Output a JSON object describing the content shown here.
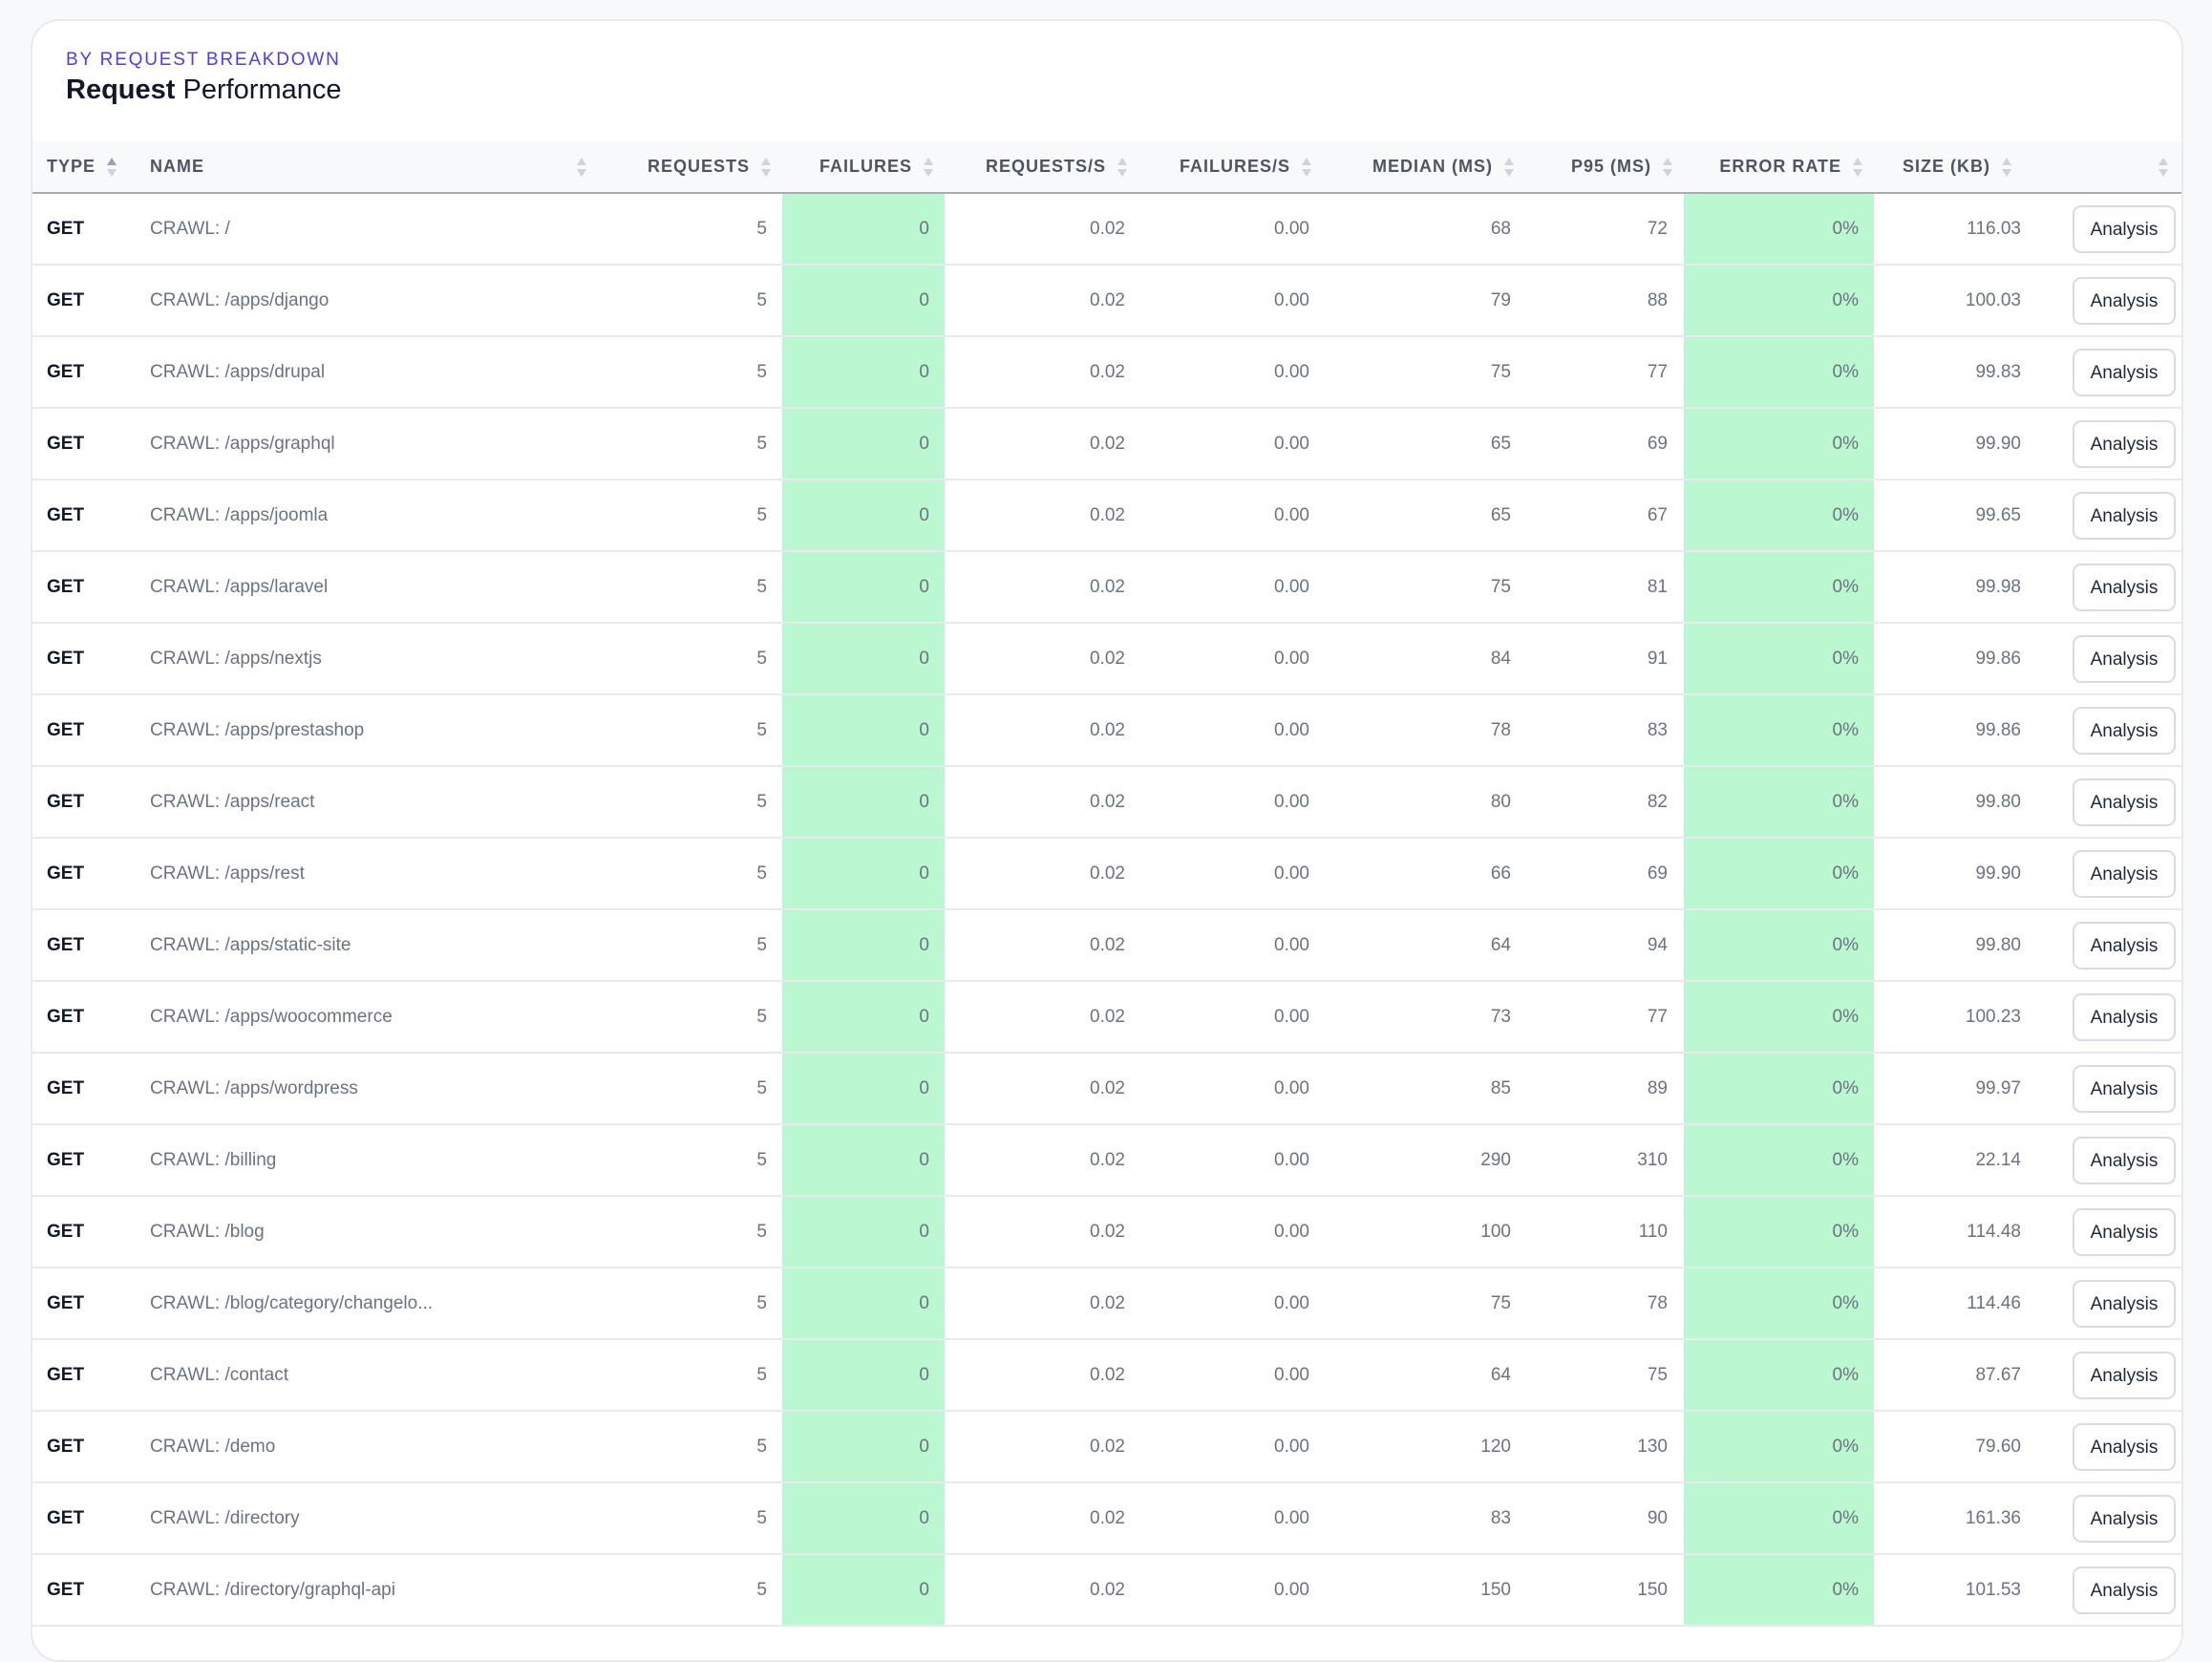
{
  "header": {
    "eyebrow": "BY REQUEST BREAKDOWN",
    "title_bold": "Request",
    "title_rest": " Performance"
  },
  "colors": {
    "accent": "#4f3cf0",
    "success_cell": "#bbf7d0"
  },
  "columns": [
    "TYPE",
    "NAME",
    "REQUESTS",
    "FAILURES",
    "REQUESTS/S",
    "FAILURES/S",
    "MEDIAN (MS)",
    "P95 (MS)",
    "ERROR RATE",
    "SIZE (KB)"
  ],
  "action_label": "Analysis",
  "rows": [
    {
      "type": "GET",
      "name": "CRAWL: /",
      "requests": "5",
      "failures": "0",
      "rps": "0.02",
      "fps": "0.00",
      "median": "68",
      "p95": "72",
      "error_rate": "0%",
      "size": "116.03"
    },
    {
      "type": "GET",
      "name": "CRAWL: /apps/django",
      "requests": "5",
      "failures": "0",
      "rps": "0.02",
      "fps": "0.00",
      "median": "79",
      "p95": "88",
      "error_rate": "0%",
      "size": "100.03"
    },
    {
      "type": "GET",
      "name": "CRAWL: /apps/drupal",
      "requests": "5",
      "failures": "0",
      "rps": "0.02",
      "fps": "0.00",
      "median": "75",
      "p95": "77",
      "error_rate": "0%",
      "size": "99.83"
    },
    {
      "type": "GET",
      "name": "CRAWL: /apps/graphql",
      "requests": "5",
      "failures": "0",
      "rps": "0.02",
      "fps": "0.00",
      "median": "65",
      "p95": "69",
      "error_rate": "0%",
      "size": "99.90"
    },
    {
      "type": "GET",
      "name": "CRAWL: /apps/joomla",
      "requests": "5",
      "failures": "0",
      "rps": "0.02",
      "fps": "0.00",
      "median": "65",
      "p95": "67",
      "error_rate": "0%",
      "size": "99.65"
    },
    {
      "type": "GET",
      "name": "CRAWL: /apps/laravel",
      "requests": "5",
      "failures": "0",
      "rps": "0.02",
      "fps": "0.00",
      "median": "75",
      "p95": "81",
      "error_rate": "0%",
      "size": "99.98"
    },
    {
      "type": "GET",
      "name": "CRAWL: /apps/nextjs",
      "requests": "5",
      "failures": "0",
      "rps": "0.02",
      "fps": "0.00",
      "median": "84",
      "p95": "91",
      "error_rate": "0%",
      "size": "99.86"
    },
    {
      "type": "GET",
      "name": "CRAWL: /apps/prestashop",
      "requests": "5",
      "failures": "0",
      "rps": "0.02",
      "fps": "0.00",
      "median": "78",
      "p95": "83",
      "error_rate": "0%",
      "size": "99.86"
    },
    {
      "type": "GET",
      "name": "CRAWL: /apps/react",
      "requests": "5",
      "failures": "0",
      "rps": "0.02",
      "fps": "0.00",
      "median": "80",
      "p95": "82",
      "error_rate": "0%",
      "size": "99.80"
    },
    {
      "type": "GET",
      "name": "CRAWL: /apps/rest",
      "requests": "5",
      "failures": "0",
      "rps": "0.02",
      "fps": "0.00",
      "median": "66",
      "p95": "69",
      "error_rate": "0%",
      "size": "99.90"
    },
    {
      "type": "GET",
      "name": "CRAWL: /apps/static-site",
      "requests": "5",
      "failures": "0",
      "rps": "0.02",
      "fps": "0.00",
      "median": "64",
      "p95": "94",
      "error_rate": "0%",
      "size": "99.80"
    },
    {
      "type": "GET",
      "name": "CRAWL: /apps/woocommerce",
      "requests": "5",
      "failures": "0",
      "rps": "0.02",
      "fps": "0.00",
      "median": "73",
      "p95": "77",
      "error_rate": "0%",
      "size": "100.23"
    },
    {
      "type": "GET",
      "name": "CRAWL: /apps/wordpress",
      "requests": "5",
      "failures": "0",
      "rps": "0.02",
      "fps": "0.00",
      "median": "85",
      "p95": "89",
      "error_rate": "0%",
      "size": "99.97"
    },
    {
      "type": "GET",
      "name": "CRAWL: /billing",
      "requests": "5",
      "failures": "0",
      "rps": "0.02",
      "fps": "0.00",
      "median": "290",
      "p95": "310",
      "error_rate": "0%",
      "size": "22.14"
    },
    {
      "type": "GET",
      "name": "CRAWL: /blog",
      "requests": "5",
      "failures": "0",
      "rps": "0.02",
      "fps": "0.00",
      "median": "100",
      "p95": "110",
      "error_rate": "0%",
      "size": "114.48"
    },
    {
      "type": "GET",
      "name": "CRAWL: /blog/category/changelo...",
      "requests": "5",
      "failures": "0",
      "rps": "0.02",
      "fps": "0.00",
      "median": "75",
      "p95": "78",
      "error_rate": "0%",
      "size": "114.46"
    },
    {
      "type": "GET",
      "name": "CRAWL: /contact",
      "requests": "5",
      "failures": "0",
      "rps": "0.02",
      "fps": "0.00",
      "median": "64",
      "p95": "75",
      "error_rate": "0%",
      "size": "87.67"
    },
    {
      "type": "GET",
      "name": "CRAWL: /demo",
      "requests": "5",
      "failures": "0",
      "rps": "0.02",
      "fps": "0.00",
      "median": "120",
      "p95": "130",
      "error_rate": "0%",
      "size": "79.60"
    },
    {
      "type": "GET",
      "name": "CRAWL: /directory",
      "requests": "5",
      "failures": "0",
      "rps": "0.02",
      "fps": "0.00",
      "median": "83",
      "p95": "90",
      "error_rate": "0%",
      "size": "161.36"
    },
    {
      "type": "GET",
      "name": "CRAWL: /directory/graphql-api",
      "requests": "5",
      "failures": "0",
      "rps": "0.02",
      "fps": "0.00",
      "median": "150",
      "p95": "150",
      "error_rate": "0%",
      "size": "101.53"
    }
  ]
}
